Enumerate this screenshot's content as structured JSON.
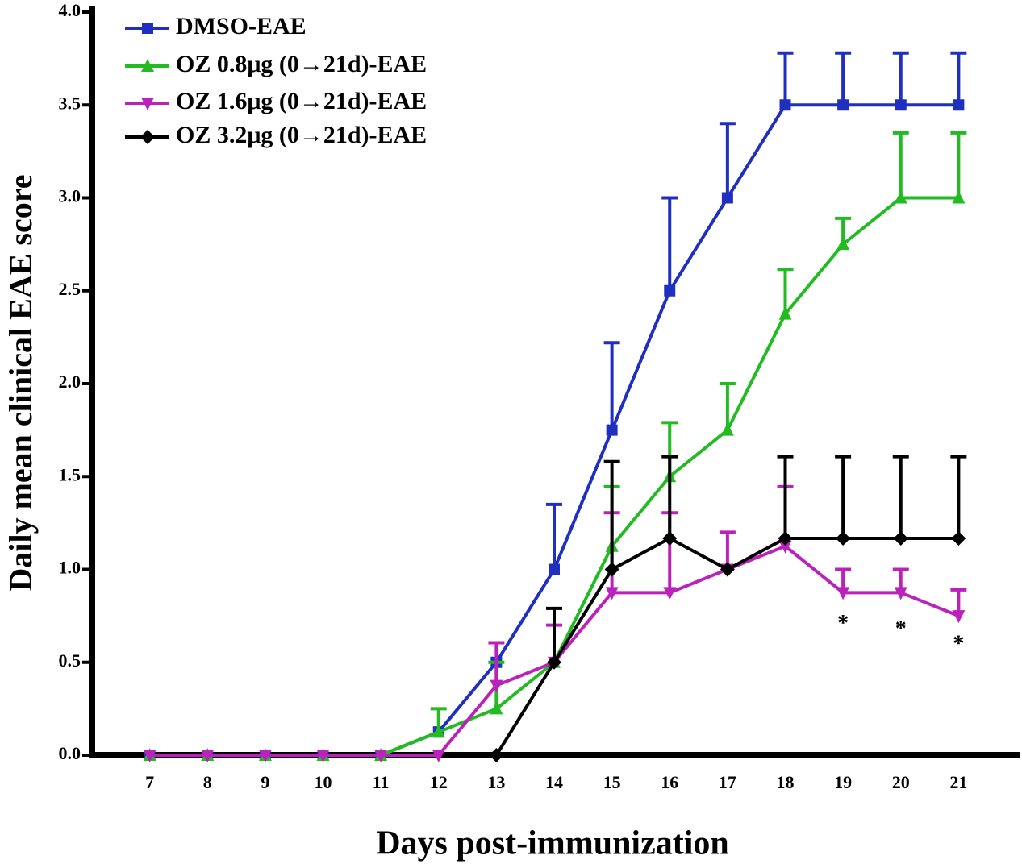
{
  "chart_data": {
    "type": "line",
    "xlabel": "Days post-immunization",
    "ylabel": "Daily mean clinical EAE score",
    "x": [
      7,
      8,
      9,
      10,
      11,
      12,
      13,
      14,
      15,
      16,
      17,
      18,
      19,
      20,
      21
    ],
    "xlim": [
      6,
      22
    ],
    "xticks": [
      7,
      8,
      9,
      10,
      11,
      12,
      13,
      14,
      15,
      16,
      17,
      18,
      19,
      20,
      21
    ],
    "ylim": [
      0,
      4
    ],
    "yticks": [
      {
        "value": 0,
        "label": "0.0"
      },
      0.5,
      {
        "value": 1,
        "label": "1.0"
      },
      1.5,
      {
        "value": 2,
        "label": "2.0"
      },
      2.5,
      {
        "value": 3,
        "label": "3.0"
      },
      3.5,
      {
        "value": 4,
        "label": "4.0"
      }
    ],
    "legend": "upper left",
    "series": [
      {
        "name": "DMSO-EAE",
        "color": "#1f2fbf",
        "marker": "square",
        "values": [
          0,
          0,
          0,
          0,
          0,
          0.125,
          0.5,
          1.0,
          1.75,
          2.5,
          3.0,
          3.5,
          3.5,
          3.5,
          3.5
        ],
        "errors": [
          null,
          null,
          null,
          null,
          null,
          null,
          null,
          0.35,
          0.47,
          0.5,
          0.4,
          0.28,
          0.28,
          0.28,
          0.28
        ]
      },
      {
        "name": "OZ 0.8μg (0→21d)-EAE",
        "color": "#22bb22",
        "marker": "triangle-up",
        "values": [
          0,
          0,
          0,
          0,
          0,
          0.125,
          0.25,
          0.5,
          1.125,
          1.5,
          1.75,
          2.375,
          2.75,
          3.0,
          3.0
        ],
        "errors": [
          null,
          null,
          null,
          null,
          null,
          0.125,
          0.25,
          null,
          0.32,
          0.29,
          0.25,
          0.24,
          0.14,
          0.35,
          0.35
        ]
      },
      {
        "name": "OZ 1.6μg (0→21d)-EAE",
        "color": "#bb22bb",
        "marker": "triangle-down",
        "values": [
          0,
          0,
          0,
          0,
          0,
          0,
          0.375,
          0.5,
          0.875,
          0.875,
          1.0,
          1.125,
          0.875,
          0.875,
          0.75
        ],
        "errors": [
          null,
          null,
          null,
          null,
          null,
          null,
          0.23,
          0.2,
          0.43,
          0.43,
          0.2,
          0.32,
          0.125,
          0.125,
          0.14
        ]
      },
      {
        "name": "OZ 3.2μg (0→21d)-EAE",
        "color": "#000000",
        "marker": "diamond",
        "values": [
          null,
          null,
          null,
          null,
          null,
          null,
          0,
          0.5,
          1.0,
          1.167,
          1.0,
          1.167,
          1.167,
          1.167,
          1.167
        ],
        "errors": [
          null,
          null,
          null,
          null,
          null,
          null,
          null,
          0.29,
          0.58,
          0.44,
          null,
          0.44,
          0.44,
          0.44,
          0.44
        ]
      }
    ],
    "annotations": [
      {
        "text": "*",
        "x": 19,
        "y": 0.7
      },
      {
        "text": "*",
        "x": 20,
        "y": 0.67
      },
      {
        "text": "*",
        "x": 21,
        "y": 0.59
      }
    ]
  }
}
